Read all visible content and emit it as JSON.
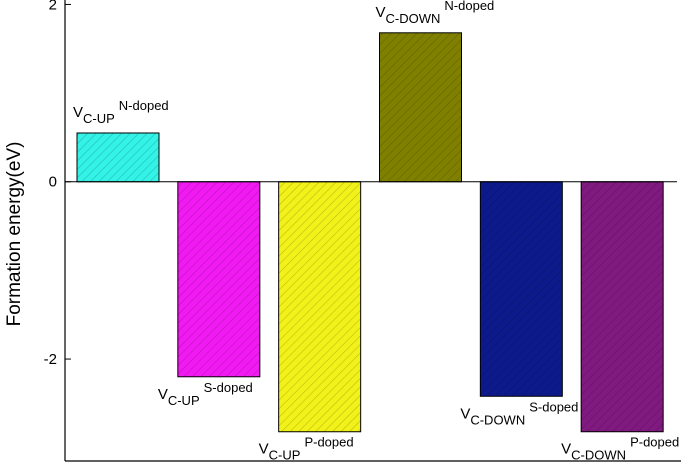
{
  "chart_data": {
    "type": "bar",
    "ylabel": "Formation energy(eV)",
    "xlabel": "",
    "title": "",
    "ylim": [
      -3.15,
      2.05
    ],
    "yticks": [
      -2,
      0,
      2
    ],
    "yticks_labels": [
      "-2",
      "0",
      "2"
    ],
    "grid": false,
    "categories": [
      {
        "main": "V",
        "sub": "C-UP",
        "suffix": "N-doped",
        "value": 0.55,
        "color": "#33f2e6",
        "label_pos": "above"
      },
      {
        "main": "V",
        "sub": "C-UP",
        "suffix": "S-doped",
        "value": -2.2,
        "color": "#f21af2",
        "label_pos": "below"
      },
      {
        "main": "V",
        "sub": "C-UP",
        "suffix": "P-doped",
        "value": -2.82,
        "color": "#f2f21a",
        "label_pos": "below"
      },
      {
        "main": "V",
        "sub": "C-DOWN",
        "suffix": "N-doped",
        "value": 1.68,
        "color": "#808000",
        "label_pos": "above"
      },
      {
        "main": "V",
        "sub": "C-DOWN",
        "suffix": "S-doped",
        "value": -2.42,
        "color": "#0d1a8c",
        "label_pos": "below"
      },
      {
        "main": "V",
        "sub": "C-DOWN",
        "suffix": "P-doped",
        "value": -2.82,
        "color": "#801a80",
        "label_pos": "below"
      }
    ]
  }
}
